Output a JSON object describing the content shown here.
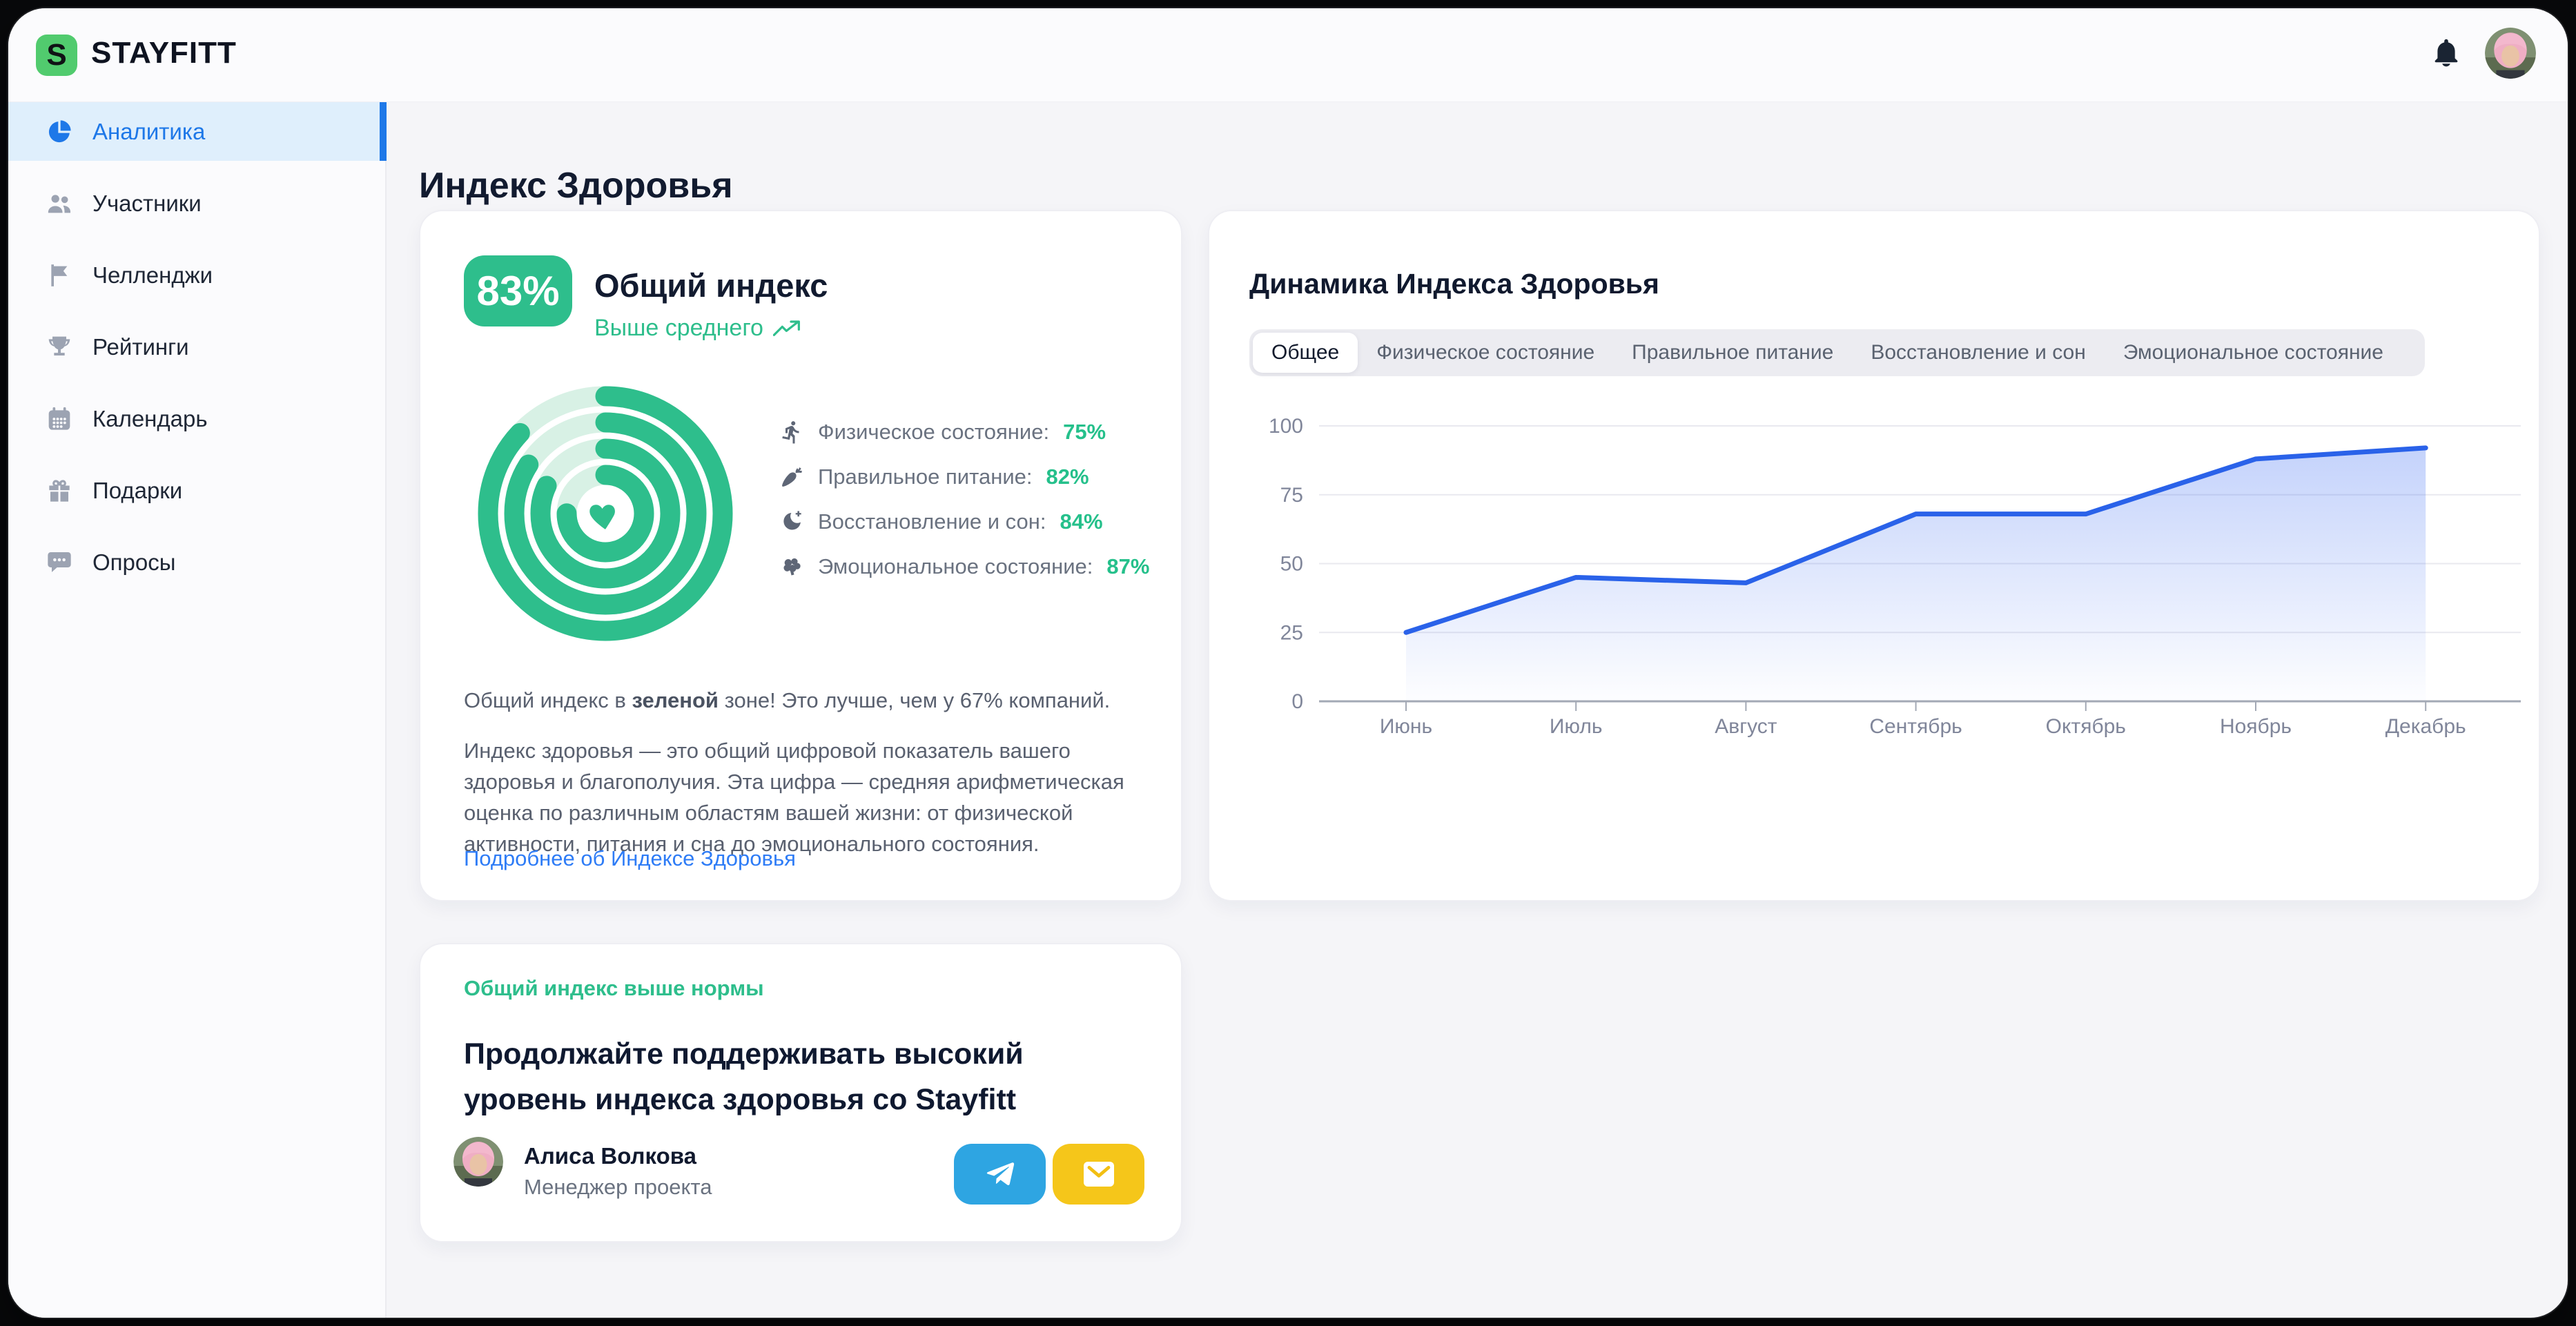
{
  "brand": {
    "name": "STAYFITT",
    "logo_letter": "S",
    "logo_color": "#51CB6E"
  },
  "topbar": {
    "icons": [
      {
        "name": "bell-icon"
      },
      {
        "name": "user-avatar"
      }
    ]
  },
  "sidebar": {
    "items": [
      {
        "label": "Аналитика",
        "icon": "pie-chart-icon",
        "active": true
      },
      {
        "label": "Участники",
        "icon": "users-icon",
        "active": false
      },
      {
        "label": "Челленджи",
        "icon": "flag-icon",
        "active": false
      },
      {
        "label": "Рейтинги",
        "icon": "trophy-icon",
        "active": false
      },
      {
        "label": "Календарь",
        "icon": "calendar-icon",
        "active": false
      },
      {
        "label": "Подарки",
        "icon": "gift-icon",
        "active": false
      },
      {
        "label": "Опросы",
        "icon": "chat-icon",
        "active": false
      }
    ],
    "active_color": "#1E78E8"
  },
  "page_title": "Индекс Здоровья",
  "overview": {
    "badge_value": "83%",
    "title": "Общий индекс",
    "subtitle": "Выше среднего",
    "metrics": [
      {
        "label": "Физическое состояние:",
        "value": "75%",
        "icon": "runner-icon"
      },
      {
        "label": "Правильное питание:",
        "value": "82%",
        "icon": "carrot-icon"
      },
      {
        "label": "Восстановление и сон:",
        "value": "84%",
        "icon": "moon-icon"
      },
      {
        "label": "Эмоциональное состояние:",
        "value": "87%",
        "icon": "brain-icon"
      }
    ],
    "note_prefix": "Общий индекс в ",
    "note_bold": "зеленой",
    "note_suffix": " зоне! Это лучше, чем у 67% компаний.",
    "description": "Индекс здоровья — это общий цифровой показатель вашего здоровья и благополучия. Эта цифра — средняя арифметическая оценка по различным областям вашей жизни: от физической активности, питания и сна до эмоционального состояния.",
    "link": "Подробнее об Индексе Здоровья",
    "accent_green": "#2EBE8C",
    "ring_track": "#D8F1E5"
  },
  "recommendation": {
    "label": "Общий индекс выше нормы",
    "title": "Продолжайте поддерживать высокий уровень индекса здоровья со Stayfitt",
    "person": {
      "name": "Алиса Волкова",
      "role": "Менеджер проекта"
    },
    "buttons": [
      {
        "name": "telegram-button",
        "color": "#2EA5E2"
      },
      {
        "name": "email-button",
        "color": "#F5C61A"
      }
    ]
  },
  "dynamics": {
    "title": "Динамика Индекса Здоровья",
    "tabs": [
      "Общее",
      "Физическое состояние",
      "Правильное питание",
      "Восстановление и сон",
      "Эмоциональное состояние"
    ],
    "active_tab": "Общее",
    "chart_data": {
      "type": "area",
      "x": [
        "Июнь",
        "Июль",
        "Август",
        "Сентябрь",
        "Октябрь",
        "Ноябрь",
        "Декабрь"
      ],
      "values": [
        25,
        45,
        43,
        68,
        68,
        88,
        92
      ],
      "yticks": [
        0,
        25,
        50,
        75,
        100
      ],
      "ylim": [
        0,
        100
      ],
      "title": "Динамика Индекса Здоровья",
      "xlabel": "",
      "ylabel": "",
      "grid": true,
      "legend_position": "none",
      "line_color": "#2A62E9",
      "fill_color": "#3B6BF2"
    }
  }
}
